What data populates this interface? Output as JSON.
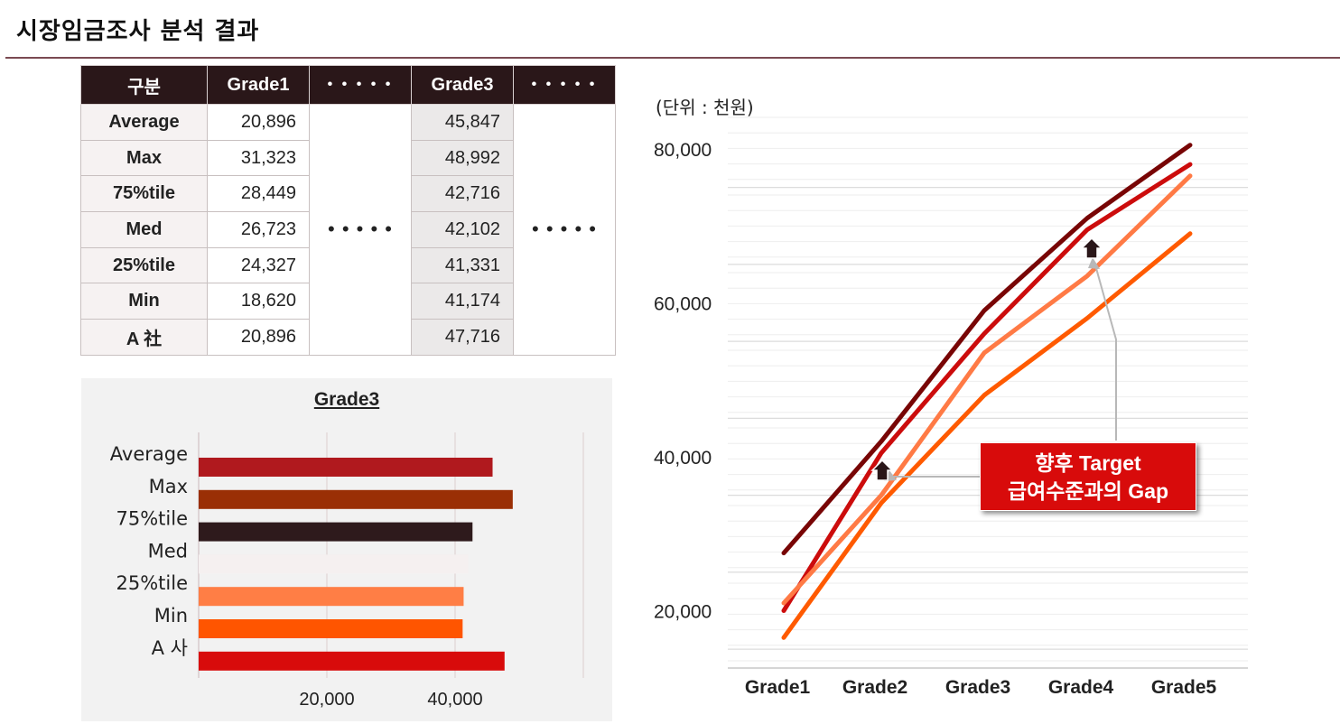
{
  "header": {
    "title": "시장임금조사 분석 결과"
  },
  "table": {
    "headers": [
      "구분",
      "Grade1",
      "• • • • •",
      "Grade3",
      "• • • • •"
    ],
    "ellipsis": "• • • • •",
    "rows": [
      {
        "label": "Average",
        "grade1": "20,896",
        "grade3": "45,847"
      },
      {
        "label": "Max",
        "grade1": "31,323",
        "grade3": "48,992"
      },
      {
        "label": "75%tile",
        "grade1": "28,449",
        "grade3": "42,716"
      },
      {
        "label": "Med",
        "grade1": "26,723",
        "grade3": "42,102"
      },
      {
        "label": "25%tile",
        "grade1": "24,327",
        "grade3": "41,331"
      },
      {
        "label": "Min",
        "grade1": "18,620",
        "grade3": "41,174"
      },
      {
        "label": "A 社",
        "grade1": "20,896",
        "grade3": "47,716"
      }
    ]
  },
  "line_chart": {
    "unit_label": "(단위 : 천원)",
    "callout_line1": "향후 Target",
    "callout_line2": "급여수준과의 Gap"
  },
  "chart_data": [
    {
      "type": "bar",
      "orientation": "horizontal",
      "title": "Grade3",
      "categories": [
        "Average",
        "Max",
        "75%tile",
        "Med",
        "25%tile",
        "Min",
        "A 사"
      ],
      "values": [
        45847,
        48992,
        42716,
        42102,
        41331,
        41174,
        47716
      ],
      "colors": [
        "#b0191e",
        "#9a2f05",
        "#2e1a1c",
        "#f5f0f0",
        "#ff7e45",
        "#ff5500",
        "#d80b0b"
      ],
      "xlim": [
        0,
        60000
      ],
      "xticks": [
        20000,
        40000
      ],
      "xtick_labels": [
        "20,000",
        "40,000"
      ],
      "grid": true
    },
    {
      "type": "line",
      "categories": [
        "Grade1",
        "Grade2",
        "Grade3",
        "Grade4",
        "Grade5"
      ],
      "ylim": [
        13000,
        82000
      ],
      "yticks": [
        20000,
        40000,
        60000,
        80000
      ],
      "ytick_labels": [
        "20,000",
        "40,000",
        "60,000",
        "80,000"
      ],
      "grid": true,
      "series": [
        {
          "values": [
            27500,
            42000,
            59000,
            71000,
            80500
          ],
          "color": "#780505"
        },
        {
          "values": [
            20000,
            40500,
            56000,
            69500,
            78000
          ],
          "color": "#cc0c0c"
        },
        {
          "values": [
            21000,
            35000,
            53500,
            63500,
            76500
          ],
          "color": "#ff7a45"
        },
        {
          "values": [
            16500,
            34000,
            48000,
            58000,
            69000
          ],
          "color": "#ff5a00"
        }
      ]
    }
  ]
}
